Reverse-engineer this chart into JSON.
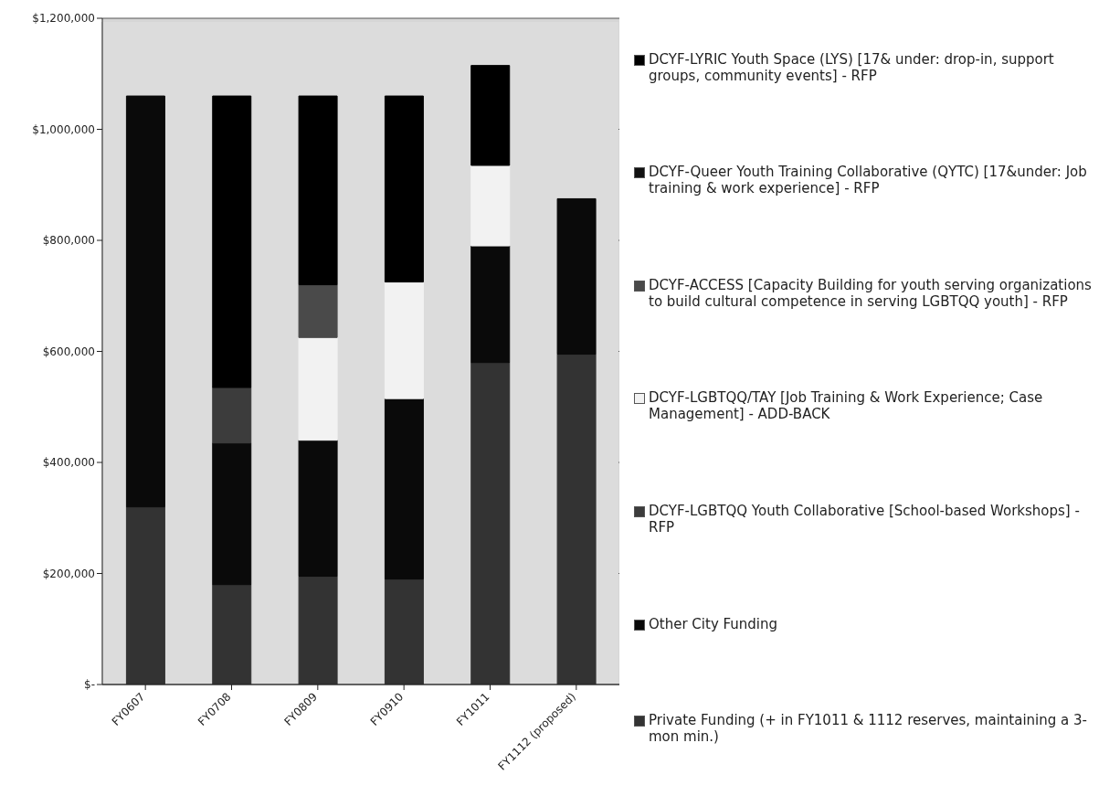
{
  "chart_data": {
    "type": "bar",
    "stacked": true,
    "categories": [
      "FY0607",
      "FY0708",
      "FY0809",
      "FY0910",
      "FY1011",
      "FY1112 (proposed)"
    ],
    "series": [
      {
        "name": "Private Funding (+ in FY1011 & 1112 reserves, maintaining a 3-mon min.)",
        "color": "#333333",
        "values": [
          320000,
          180000,
          195000,
          190000,
          580000,
          595000
        ]
      },
      {
        "name": "Other City Funding",
        "color": "#0a0a0a",
        "values": [
          740000,
          255000,
          245000,
          325000,
          210000,
          280000
        ]
      },
      {
        "name": "DCYF-LGBTQQ Youth Collaborative [School-based Workshops] - RFP",
        "color": "#3c3c3c",
        "values": [
          null,
          100000,
          null,
          null,
          null,
          null
        ]
      },
      {
        "name": "DCYF-LGBTQQ/TAY [Job Training & Work Experience; Case Management] - ADD-BACK",
        "color": "#f2f2f2",
        "values": [
          null,
          null,
          185000,
          210000,
          145000,
          null
        ]
      },
      {
        "name": "DCYF-ACCESS [Capacity Building for youth serving organizations to build cultural competence in serving LGBTQQ youth] - RFP",
        "color": "#4a4a4a",
        "values": [
          null,
          null,
          95000,
          null,
          null,
          null
        ]
      },
      {
        "name": "DCYF-Queer Youth Training Collaborative (QYTC) [17&under:  Job training & work experience] - RFP",
        "color": "#111111",
        "values": [
          null,
          null,
          null,
          null,
          null,
          null
        ]
      },
      {
        "name": "DCYF-LYRIC Youth Space (LYS) [17& under: drop-in, support groups, community events] - RFP",
        "color": "#000000",
        "values": [
          null,
          525000,
          340000,
          335000,
          180000,
          null
        ]
      }
    ],
    "ylim": [
      0,
      1200000
    ],
    "yticks": [
      {
        "value": 0,
        "label": "$-"
      },
      {
        "value": 200000,
        "label": "$200,000"
      },
      {
        "value": 400000,
        "label": "$400,000"
      },
      {
        "value": 600000,
        "label": "$600,000"
      },
      {
        "value": 800000,
        "label": "$800,000"
      },
      {
        "value": 1000000,
        "label": "$1,000,000"
      },
      {
        "value": 1200000,
        "label": "$1,200,000"
      }
    ],
    "grid": "y",
    "legend": "right"
  }
}
